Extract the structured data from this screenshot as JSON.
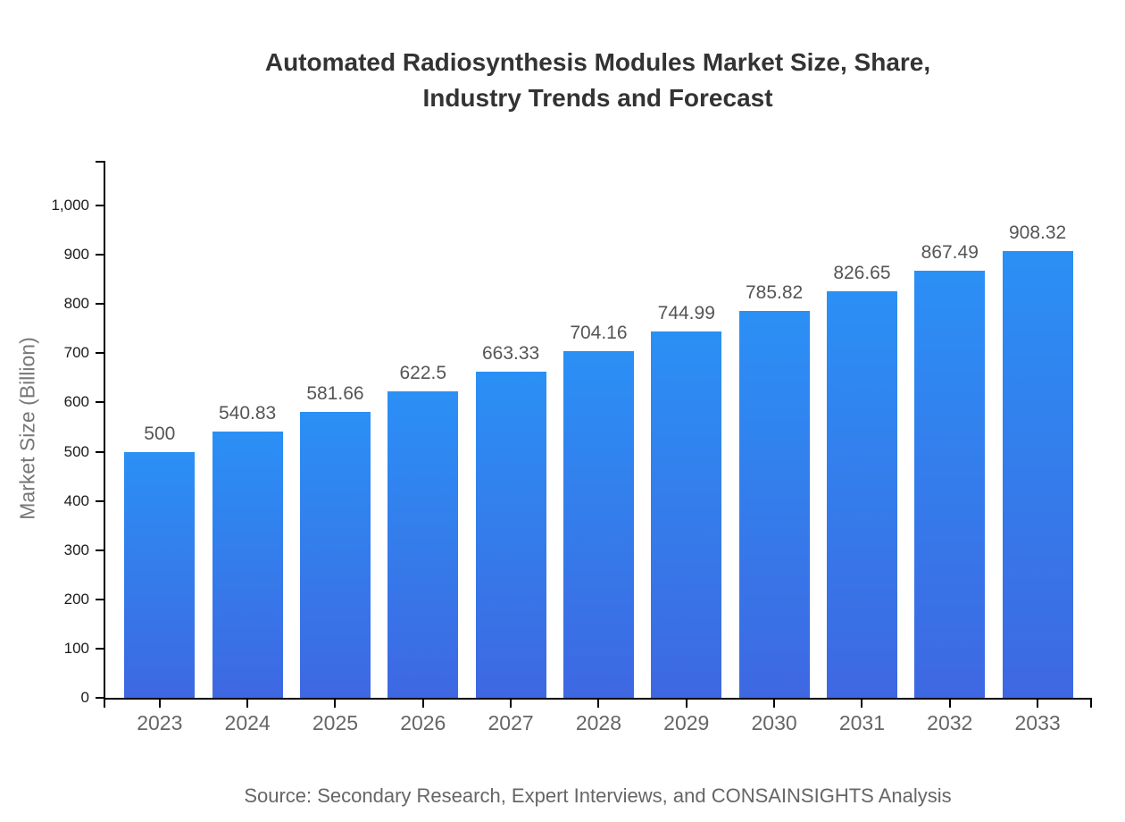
{
  "chart_data": {
    "type": "bar",
    "title": "Automated Radiosynthesis Modules Market Size, Share, Industry Trends and Forecast",
    "title_lines": [
      "Automated Radiosynthesis Modules Market Size, Share,",
      "Industry Trends and Forecast"
    ],
    "xlabel": "",
    "ylabel": "Market Size (Billion)",
    "categories": [
      "2023",
      "2024",
      "2025",
      "2026",
      "2027",
      "2028",
      "2029",
      "2030",
      "2031",
      "2032",
      "2033"
    ],
    "values": [
      500,
      540.83,
      581.66,
      622.5,
      663.33,
      704.16,
      744.99,
      785.82,
      826.65,
      867.49,
      908.32
    ],
    "value_labels": [
      "500",
      "540.83",
      "581.66",
      "622.5",
      "663.33",
      "704.16",
      "744.99",
      "785.82",
      "826.65",
      "867.49",
      "908.32"
    ],
    "ylim": [
      0,
      1000
    ],
    "yticks": [
      0,
      100,
      200,
      300,
      400,
      500,
      600,
      700,
      800,
      900,
      1000
    ],
    "ytick_labels": [
      "0",
      "100",
      "200",
      "300",
      "400",
      "500",
      "600",
      "700",
      "800",
      "900",
      "1,000"
    ],
    "grid": false,
    "legend": false,
    "bar_color_top": "#2B90F5",
    "bar_color_bottom": "#3E68E2",
    "axis_color": "#000000"
  },
  "footer": {
    "source": "Source: Secondary Research, Expert Interviews, and CONSAINSIGHTS Analysis"
  }
}
